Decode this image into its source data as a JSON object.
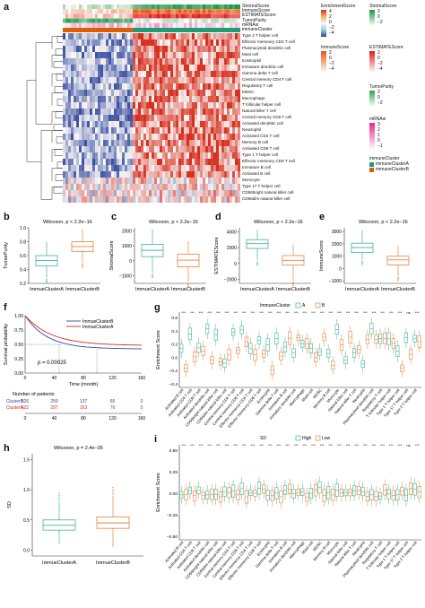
{
  "panels": {
    "a": "a",
    "b": "b",
    "c": "c",
    "d": "d",
    "e": "e",
    "f": "f",
    "g": "g",
    "h": "h",
    "i": "i"
  },
  "heatmap": {
    "annotation_rows": [
      "StromalScore",
      "ImmuneScore",
      "ESTIMATEScore",
      "TumorPurity",
      "mRNAsi",
      "immuneCluster"
    ],
    "rows": [
      "Type 2 T helper cell",
      "Effector memeory CD4 T cell",
      "Plasmacytoid dendritic cell",
      "Mast cell",
      "Eosinophil",
      "Immature dendritic cell",
      "Gamma delta T cell",
      "Central memory CD4 T cell",
      "Regulatory T cell",
      "MDSC",
      "Macrophage",
      "T follicular helper cell",
      "Natural killer T cell",
      "Central memory CD8 T cell",
      "Activated dendritic cell",
      "Neutrophil",
      "Activated CD4 T cell",
      "Memory B cell",
      "Activated CD8 T cell",
      "Type 1 T helper cell",
      "Effector memeory CD8 T cell",
      "Immature B cell",
      "Activated B cell",
      "Monocyte",
      "Type 17 T helper cell",
      "CD56bright natural killer cell",
      "CD56dim natural killer cell"
    ],
    "legends": [
      {
        "title": "EnrichmentScore",
        "ticks": [
          "4",
          "2",
          "0",
          "−2",
          "−4"
        ],
        "colors": [
          "#d7301f",
          "#fdae61",
          "#f7f7f7",
          "#9ecae1",
          "#2c3c8c"
        ]
      },
      {
        "title": "StromalScore",
        "ticks": [
          "2",
          "0",
          "−2"
        ],
        "colors": [
          "#1a9641",
          "#ffffff"
        ]
      },
      {
        "title": "ImmuneScore",
        "ticks": [
          "2",
          "0",
          "−2",
          "−4"
        ],
        "colors": [
          "#e6550d",
          "#ffffff"
        ]
      },
      {
        "title": "ESTIMATEScore",
        "ticks": [
          "2",
          "0",
          "−2",
          "−4"
        ],
        "colors": [
          "#e41a1c",
          "#ffffff"
        ]
      },
      {
        "title": "TumorPurity",
        "ticks": [
          "2",
          "0",
          "−2"
        ],
        "colors": [
          "#31a354",
          "#ffffff"
        ]
      },
      {
        "title": "mRNAsi",
        "ticks": [
          "3",
          "2",
          "1",
          "0",
          "−1"
        ],
        "colors": [
          "#e7298a",
          "#ffffff"
        ]
      }
    ],
    "cluster_legend": {
      "title": "immuneCluster",
      "items": [
        "immuneClusterA",
        "immuneClusterB"
      ],
      "colors": [
        "#1b9e77",
        "#d95f02"
      ]
    }
  },
  "box_panels": [
    {
      "id": "b",
      "stat": "Wilcoxon, p < 2.2e−16",
      "ylabel": "TumorPurity",
      "yticks": [
        "1.0",
        "0.8",
        "0.6",
        "0.4",
        "0.2"
      ],
      "ymin": 0.2,
      "ymax": 1.0,
      "groups": [
        {
          "name": "ImmueClusterA",
          "q1": 0.45,
          "median": 0.53,
          "q3": 0.6,
          "lo": 0.28,
          "hi": 0.8,
          "color": "#3fb59a"
        },
        {
          "name": "ImmueClusterB",
          "q1": 0.66,
          "median": 0.73,
          "q3": 0.8,
          "lo": 0.5,
          "hi": 0.98,
          "color": "#e8823a"
        }
      ]
    },
    {
      "id": "c",
      "stat": "Wilcoxon, p < 2.2e−16",
      "ylabel": "StromalScore",
      "yticks": [
        "2000",
        "1000",
        "0",
        "−1000"
      ],
      "ymin": -1500,
      "ymax": 2200,
      "groups": [
        {
          "name": "ImmueClusterA",
          "q1": 280,
          "median": 700,
          "q3": 1100,
          "lo": -800,
          "hi": 2100,
          "color": "#3fb59a"
        },
        {
          "name": "ImmueClusterB",
          "q1": -400,
          "median": 50,
          "q3": 450,
          "lo": -1400,
          "hi": 1300,
          "color": "#e8823a"
        }
      ]
    },
    {
      "id": "d",
      "stat": "Wilcoxon, p < 2.2e−16",
      "ylabel": "ESTIMATEScore",
      "yticks": [
        "4000",
        "2000",
        "0",
        "−2000"
      ],
      "ymin": -2500,
      "ymax": 4500,
      "groups": [
        {
          "name": "ImmueClusterA",
          "q1": 1900,
          "median": 2500,
          "q3": 3000,
          "lo": 400,
          "hi": 4300,
          "color": "#3fb59a"
        },
        {
          "name": "ImmueClusterB",
          "q1": -200,
          "median": 400,
          "q3": 1000,
          "lo": -2200,
          "hi": 2400,
          "color": "#e8823a"
        }
      ]
    },
    {
      "id": "e",
      "stat": "Wilcoxon, p < 2.2e−16",
      "ylabel": "ImmuneScore",
      "yticks": [
        "3000",
        "2000",
        "1000",
        "0",
        "−1000"
      ],
      "ymin": -1200,
      "ymax": 3300,
      "groups": [
        {
          "name": "ImmueClusterA",
          "q1": 1300,
          "median": 1700,
          "q3": 2050,
          "lo": 700,
          "hi": 3100,
          "color": "#3fb59a"
        },
        {
          "name": "ImmueClusterB",
          "q1": 300,
          "median": 700,
          "q3": 1000,
          "lo": -600,
          "hi": 1800,
          "color": "#e8823a"
        }
      ]
    }
  ],
  "survival": {
    "ylabel": "Survival probability",
    "xlabel": "Time (month)",
    "pval": "p = 0.00025",
    "legend": [
      "ImmueClusterB",
      "ImmueClusterA"
    ],
    "yticks": [
      "1.00",
      "0.75",
      "0.50",
      "0.25",
      "0.00"
    ],
    "xticks": [
      "0",
      "40",
      "80",
      "120",
      "160"
    ],
    "risk_title": "Number of patients",
    "risk_rows": [
      {
        "label": "ClusterB",
        "values": [
          "526",
          "259",
          "137",
          "65",
          "0"
        ],
        "color": "#3447a0"
      },
      {
        "label": "ClusterA",
        "values": [
          "522",
          "297",
          "163",
          "76",
          "0"
        ],
        "color": "#d62728"
      }
    ],
    "colors": {
      "B": "#3447a0",
      "A": "#d62728"
    }
  },
  "g": {
    "legend_title": "ImmuneCluster",
    "legend_items": [
      "A",
      "B"
    ],
    "colors": [
      "#3fb59a",
      "#e8823a"
    ],
    "ylabel": "Enrichment Score",
    "yticks": [
      "0.6",
      "0.4",
      "0.2",
      "0.0",
      "−0.2",
      "−0.4"
    ],
    "sig": "***",
    "ns": "ns"
  },
  "h": {
    "stat": "Wilcoxon, p = 2.4e−05",
    "ylabel": "SD",
    "yticks": [
      "1.5",
      "1.0",
      "0.5",
      "0.0"
    ],
    "ymin": -0.1,
    "ymax": 1.6,
    "groups": [
      {
        "name": "ImmueClusterA",
        "q1": 0.33,
        "median": 0.41,
        "q3": 0.5,
        "lo": 0.1,
        "hi": 0.8,
        "color": "#3fb59a"
      },
      {
        "name": "ImmueClusterB",
        "q1": 0.36,
        "median": 0.45,
        "q3": 0.55,
        "lo": 0.05,
        "hi": 0.9,
        "color": "#e8823a"
      }
    ]
  },
  "i": {
    "legend_title": "SD",
    "legend_items": [
      "High",
      "Low"
    ],
    "colors": [
      "#3fb59a",
      "#e8823a"
    ],
    "ylabel": "Enrichment Score",
    "yticks": [
      "0.50",
      "0.25",
      "0.00",
      "−0.25",
      "−0.50"
    ],
    "sig": "***",
    "ns": "ns"
  },
  "cell_types": [
    "Activated B cell",
    "Activated CD4 T cell",
    "Activated CD8 T cell",
    "Activated dendritic cell",
    "CD56bright natural killer cell",
    "CD56dim natural killer cell",
    "Central memory CD4 T cell",
    "Central memory CD8 T cell",
    "Effector memeory CD4 T cell",
    "Effector memeory CD8 T cell",
    "Eosinophil",
    "Gamma delta T cell",
    "Immature B cell",
    "Immature dendritic cell",
    "Macrophage",
    "Mast cell",
    "MDSC",
    "Memory B cell",
    "Monocyte",
    "Natural killer cell",
    "Natural killer T cell",
    "Neutrophil",
    "Plasmacytoid dendritic cell",
    "Regulatory T cell",
    "T follicular helper cell",
    "Type 1 T helper cell",
    "Type 17 T helper cell",
    "Type 2 T helper cell"
  ]
}
